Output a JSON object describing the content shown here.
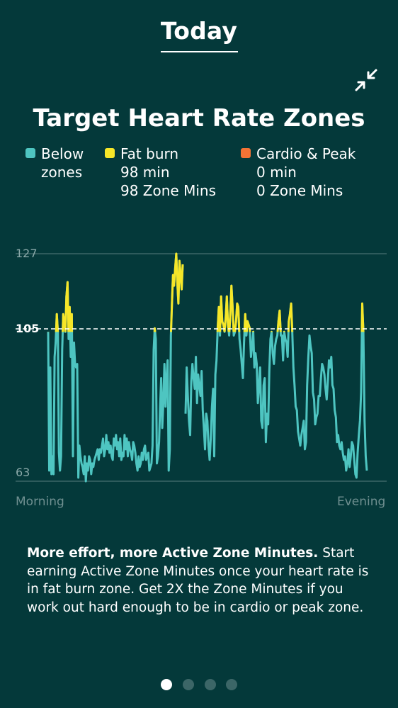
{
  "header": {
    "title": "Today"
  },
  "collapse_icon": "collapse-arrows-icon",
  "page_title": "Target Heart Rate Zones",
  "legend": [
    {
      "label_line1": "Below",
      "label_line2": "zones",
      "color": "#4ec5c1"
    },
    {
      "label_line1": "Fat burn",
      "minutes": "98 min",
      "zone_mins": "98 Zone Mins",
      "color": "#f6e628"
    },
    {
      "label_line1": "Cardio & Peak",
      "minutes": "0 min",
      "zone_mins": "0 Zone Mins",
      "color": "#f37335"
    }
  ],
  "chart_data": {
    "type": "line",
    "y_ticks": [
      "127",
      "105",
      "63"
    ],
    "y_threshold": 105,
    "ylim": [
      63,
      127
    ],
    "x_start_label": "Morning",
    "x_end_label": "Evening",
    "series": [
      {
        "values": [
          105,
          66,
          95,
          65,
          70,
          65,
          98,
          102,
          110,
          105,
          71,
          66,
          70,
          100,
          110,
          108,
          105,
          115,
          119,
          103,
          112,
          98,
          110,
          70,
          102,
          96,
          95,
          96,
          64,
          73,
          70,
          68,
          67,
          65,
          70,
          63,
          68,
          66,
          70,
          69,
          65,
          68,
          67,
          69,
          70,
          71,
          72,
          69,
          72,
          71,
          73,
          75,
          70,
          72,
          76,
          72,
          74,
          71,
          73,
          70,
          69,
          75,
          73,
          76,
          72,
          74,
          70,
          75,
          69,
          71,
          70,
          76,
          72,
          75,
          70,
          74,
          72,
          71,
          69,
          74,
          73,
          71,
          68,
          66,
          70,
          67,
          68,
          71,
          69,
          72,
          73,
          69,
          70,
          71,
          66,
          67,
          68,
          73,
          100,
          106,
          103,
          68,
          70,
          74,
          84,
          92,
          78,
          85,
          96,
          84,
          92,
          97,
          66,
          72,
          104,
          113,
          121,
          118,
          123,
          127,
          119,
          113,
          125,
          121,
          117,
          124
        ],
        "color_below": "#4ec5c1",
        "color_fatburn": "#f6e628"
      },
      {
        "values": [
          82,
          95,
          87,
          80,
          76,
          91,
          96,
          92,
          89,
          98,
          85,
          93,
          90,
          87,
          94,
          83,
          78,
          72,
          82,
          80,
          73,
          69,
          75,
          84,
          89,
          70,
          93,
          97,
          106,
          112,
          104,
          115,
          108,
          107,
          105,
          109,
          115,
          107,
          104,
          110,
          118,
          112,
          104,
          105,
          108,
          113,
          112,
          103,
          100,
          96,
          92,
          102,
          110,
          104,
          108,
          107,
          106,
          98,
          101,
          105,
          95,
          99,
          96,
          85,
          90,
          95,
          80,
          78,
          90,
          92,
          74,
          82,
          79,
          94,
          103,
          105,
          99,
          96,
          101,
          103,
          104,
          108,
          111,
          104,
          104,
          97,
          105,
          103,
          102,
          98,
          108,
          110,
          113,
          105,
          95,
          90,
          84,
          83,
          77,
          75,
          73,
          76,
          78,
          80,
          72,
          74,
          90,
          98,
          104,
          101,
          99,
          88,
          86,
          79,
          81,
          82,
          87,
          87,
          92,
          96,
          95,
          93,
          89,
          86,
          91,
          97,
          95,
          98,
          90,
          89,
          83,
          81,
          74,
          76,
          73,
          72,
          74,
          71,
          69,
          70,
          66,
          68,
          72,
          67,
          70,
          74,
          73,
          69,
          65,
          64,
          71,
          76,
          80,
          88,
          113,
          105,
          80,
          70,
          66
        ],
        "color_below": "#4ec5c1",
        "color_fatburn": "#f6e628"
      }
    ]
  },
  "description": {
    "bold": "More effort, more Active Zone Minutes.",
    "text": " Start earning Active Zone Minutes once your heart rate is in fat burn zone. Get 2X the Zone Minutes if you work out hard enough to be in cardio or peak zone."
  },
  "pager": {
    "total": 4,
    "active": 1
  }
}
